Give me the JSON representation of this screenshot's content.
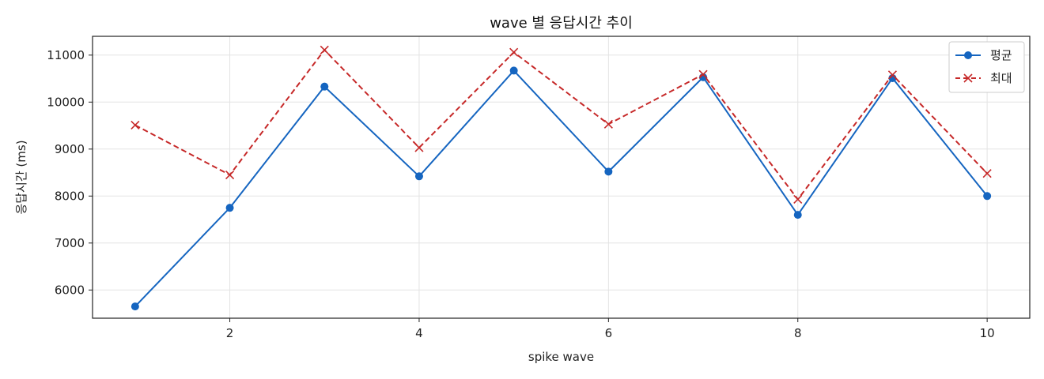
{
  "chart_data": {
    "type": "line",
    "title": "wave 별 응답시간 추이",
    "xlabel": "spike wave",
    "ylabel": "응답시간 (ms)",
    "x": [
      1,
      2,
      3,
      4,
      5,
      6,
      7,
      8,
      9,
      10
    ],
    "xlim": [
      0.55,
      10.45
    ],
    "ylim": [
      5400,
      11400
    ],
    "xticks": [
      2,
      4,
      6,
      8,
      10
    ],
    "yticks": [
      6000,
      7000,
      8000,
      9000,
      10000,
      11000
    ],
    "grid": true,
    "legend_position": "top-right",
    "series": [
      {
        "name": "평균",
        "color": "#1565c0",
        "line_style": "solid",
        "marker": "circle",
        "values": [
          5650,
          7750,
          10330,
          8420,
          10670,
          8520,
          10530,
          7600,
          10510,
          8000
        ]
      },
      {
        "name": "최대",
        "color": "#c62828",
        "line_style": "dashed",
        "marker": "x",
        "values": [
          9510,
          8450,
          11110,
          9030,
          11060,
          9530,
          10590,
          7930,
          10580,
          8480
        ]
      }
    ]
  }
}
